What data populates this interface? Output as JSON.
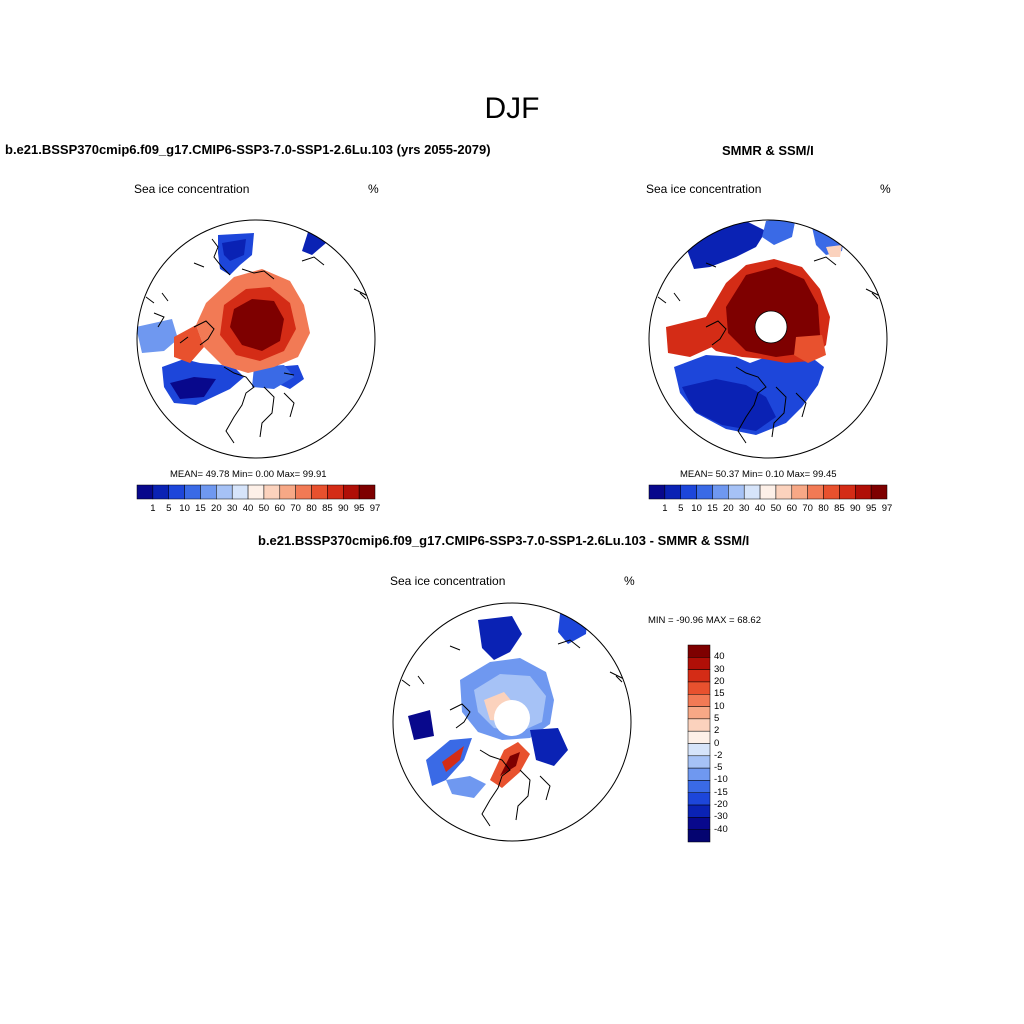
{
  "figure": {
    "title": "DJF"
  },
  "panels": {
    "model": {
      "title": "b.e21.BSSP370cmip6.f09_g17.CMIP6-SSP3-7.0-SSP1-2.6Lu.103 (yrs 2055-2079)",
      "left_label": "Sea ice concentration",
      "right_label": "%",
      "stats": "MEAN=  49.78  Min=   0.00  Max=  99.91"
    },
    "obs": {
      "title": "SMMR & SSM/I",
      "left_label": "Sea ice concentration",
      "right_label": "%",
      "stats": "MEAN=  50.37  Min=   0.10  Max=  99.45"
    },
    "diff": {
      "title": "b.e21.BSSP370cmip6.f09_g17.CMIP6-SSP3-7.0-SSP1-2.6Lu.103 - SMMR & SSM/I",
      "left_label": "Sea ice concentration",
      "right_label": "%",
      "stats": "MIN = -90.96 MAX =  68.62"
    }
  },
  "colorbars": {
    "concentration": {
      "labels": [
        "1",
        "5",
        "10",
        "15",
        "20",
        "30",
        "40",
        "50",
        "60",
        "70",
        "80",
        "85",
        "90",
        "95",
        "97"
      ],
      "colors": [
        "#08088c",
        "#0a22b4",
        "#1d46da",
        "#3a6ae6",
        "#6f98f0",
        "#a6c2f6",
        "#d6e4fa",
        "#fdf0e8",
        "#fbd2bd",
        "#f7a886",
        "#f27a55",
        "#e8512e",
        "#d42c16",
        "#b00f07",
        "#7e0000"
      ]
    },
    "difference": {
      "labels": [
        "40",
        "30",
        "20",
        "15",
        "10",
        "5",
        "2",
        "0",
        "-2",
        "-5",
        "-10",
        "-15",
        "-20",
        "-30",
        "-40"
      ],
      "colors": [
        "#7e0000",
        "#b00f07",
        "#d42c16",
        "#e8512e",
        "#f27a55",
        "#f7a886",
        "#fbd2bd",
        "#fdf0e8",
        "#d6e4fa",
        "#a6c2f6",
        "#6f98f0",
        "#3a6ae6",
        "#1d46da",
        "#0a22b4",
        "#08088c",
        "#040470"
      ]
    }
  }
}
